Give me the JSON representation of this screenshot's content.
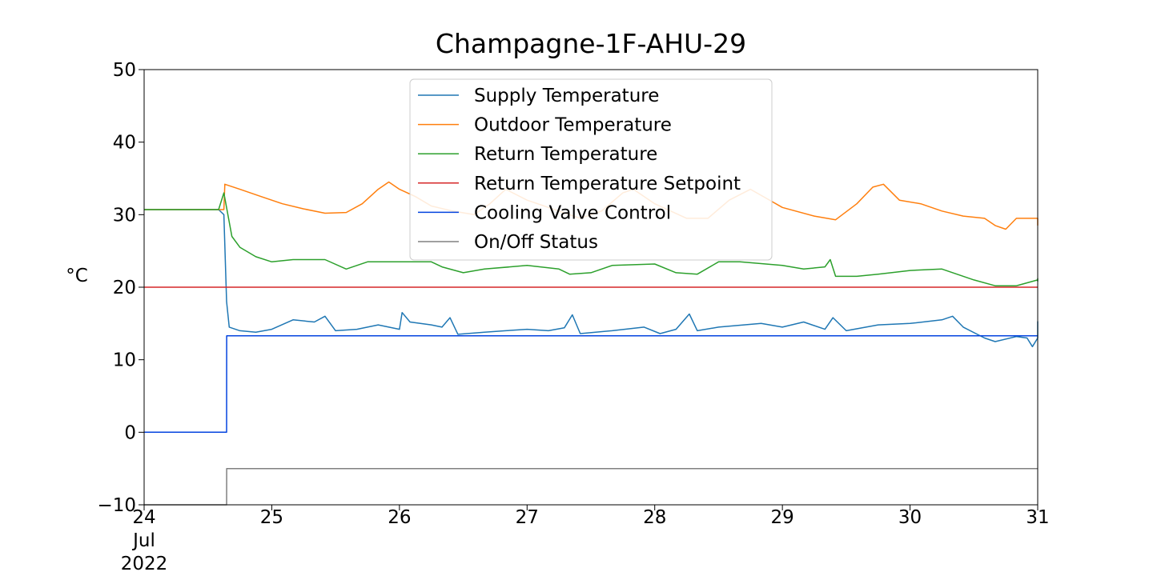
{
  "chart_data": {
    "type": "line",
    "title": "Champagne-1F-AHU-29",
    "xlabel": "",
    "ylabel": "°C",
    "ylim": [
      -10,
      50
    ],
    "xlim": [
      "2022-07-24",
      "2022-07-31"
    ],
    "xticks": [
      {
        "value": "2022-07-24",
        "lines": [
          "24",
          "Jul",
          "2022"
        ]
      },
      {
        "value": "2022-07-25",
        "lines": [
          "25"
        ]
      },
      {
        "value": "2022-07-26",
        "lines": [
          "26"
        ]
      },
      {
        "value": "2022-07-27",
        "lines": [
          "27"
        ]
      },
      {
        "value": "2022-07-28",
        "lines": [
          "28"
        ]
      },
      {
        "value": "2022-07-29",
        "lines": [
          "29"
        ]
      },
      {
        "value": "2022-07-30",
        "lines": [
          "30"
        ]
      },
      {
        "value": "2022-07-31",
        "lines": [
          "31"
        ]
      }
    ],
    "yticks": [
      {
        "value": -10,
        "label": "−10"
      },
      {
        "value": 0,
        "label": "0"
      },
      {
        "value": 10,
        "label": "10"
      },
      {
        "value": 20,
        "label": "20"
      },
      {
        "value": 30,
        "label": "30"
      },
      {
        "value": 40,
        "label": "40"
      },
      {
        "value": 50,
        "label": "50"
      }
    ],
    "grid": false,
    "legend_position": "top-center",
    "series": [
      {
        "name": "Supply Temperature",
        "color": "#1f77b4",
        "points": [
          [
            "2022-07-24 00:00",
            30.7
          ],
          [
            "2022-07-24 14:00",
            30.7
          ],
          [
            "2022-07-24 15:00",
            30.0
          ],
          [
            "2022-07-24 15:30",
            18.0
          ],
          [
            "2022-07-24 16:00",
            14.5
          ],
          [
            "2022-07-24 18:00",
            14.0
          ],
          [
            "2022-07-24 21:00",
            13.8
          ],
          [
            "2022-07-25 00:00",
            14.2
          ],
          [
            "2022-07-25 04:00",
            15.5
          ],
          [
            "2022-07-25 08:00",
            15.2
          ],
          [
            "2022-07-25 10:00",
            16.0
          ],
          [
            "2022-07-25 12:00",
            14.0
          ],
          [
            "2022-07-25 16:00",
            14.2
          ],
          [
            "2022-07-25 20:00",
            14.8
          ],
          [
            "2022-07-26 00:00",
            14.2
          ],
          [
            "2022-07-26 00:30",
            16.5
          ],
          [
            "2022-07-26 02:00",
            15.2
          ],
          [
            "2022-07-26 06:00",
            14.8
          ],
          [
            "2022-07-26 08:00",
            14.5
          ],
          [
            "2022-07-26 09:30",
            15.8
          ],
          [
            "2022-07-26 11:00",
            13.5
          ],
          [
            "2022-07-26 16:00",
            13.8
          ],
          [
            "2022-07-26 20:00",
            14.0
          ],
          [
            "2022-07-27 00:00",
            14.2
          ],
          [
            "2022-07-27 04:00",
            14.0
          ],
          [
            "2022-07-27 07:00",
            14.4
          ],
          [
            "2022-07-27 08:30",
            16.2
          ],
          [
            "2022-07-27 10:00",
            13.6
          ],
          [
            "2022-07-27 16:00",
            14.0
          ],
          [
            "2022-07-27 22:00",
            14.5
          ],
          [
            "2022-07-28 01:00",
            13.6
          ],
          [
            "2022-07-28 04:00",
            14.2
          ],
          [
            "2022-07-28 06:30",
            16.3
          ],
          [
            "2022-07-28 08:00",
            14.0
          ],
          [
            "2022-07-28 12:00",
            14.5
          ],
          [
            "2022-07-28 20:00",
            15.0
          ],
          [
            "2022-07-29 00:00",
            14.5
          ],
          [
            "2022-07-29 04:00",
            15.2
          ],
          [
            "2022-07-29 08:00",
            14.2
          ],
          [
            "2022-07-29 09:30",
            15.8
          ],
          [
            "2022-07-29 12:00",
            14.0
          ],
          [
            "2022-07-29 18:00",
            14.8
          ],
          [
            "2022-07-30 00:00",
            15.0
          ],
          [
            "2022-07-30 06:00",
            15.5
          ],
          [
            "2022-07-30 08:00",
            16.0
          ],
          [
            "2022-07-30 10:00",
            14.5
          ],
          [
            "2022-07-30 14:00",
            13.0
          ],
          [
            "2022-07-30 16:00",
            12.5
          ],
          [
            "2022-07-30 20:00",
            13.2
          ],
          [
            "2022-07-30 22:00",
            13.0
          ],
          [
            "2022-07-30 23:00",
            11.8
          ],
          [
            "2022-07-31 00:00",
            13.0
          ],
          [
            "2022-07-31 06:00",
            13.5
          ],
          [
            "2022-07-31 10:00",
            14.0
          ],
          [
            "2022-07-31 12:00",
            14.5
          ],
          [
            "2022-07-31 22:00",
            15.2
          ],
          [
            "2022-07-31 23:59",
            15.3
          ]
        ]
      },
      {
        "name": "Outdoor Temperature",
        "color": "#ff7f0e",
        "points": [
          [
            "2022-07-24 00:00",
            30.7
          ],
          [
            "2022-07-24 15:00",
            30.7
          ],
          [
            "2022-07-24 15:10",
            34.2
          ],
          [
            "2022-07-24 18:00",
            33.5
          ],
          [
            "2022-07-24 22:00",
            32.5
          ],
          [
            "2022-07-25 02:00",
            31.5
          ],
          [
            "2022-07-25 06:00",
            30.8
          ],
          [
            "2022-07-25 10:00",
            30.2
          ],
          [
            "2022-07-25 14:00",
            30.3
          ],
          [
            "2022-07-25 17:00",
            31.5
          ],
          [
            "2022-07-25 20:00",
            33.5
          ],
          [
            "2022-07-25 22:00",
            34.5
          ],
          [
            "2022-07-26 00:00",
            33.5
          ],
          [
            "2022-07-26 03:00",
            32.5
          ],
          [
            "2022-07-26 06:00",
            31.2
          ],
          [
            "2022-07-26 10:00",
            30.5
          ],
          [
            "2022-07-26 14:00",
            30.0
          ],
          [
            "2022-07-26 17:00",
            31.5
          ],
          [
            "2022-07-26 20:00",
            33.5
          ],
          [
            "2022-07-27 00:00",
            32.0
          ],
          [
            "2022-07-27 06:00",
            30.5
          ],
          [
            "2022-07-27 10:00",
            29.5
          ],
          [
            "2022-07-27 14:00",
            30.5
          ],
          [
            "2022-07-27 18:00",
            33.0
          ],
          [
            "2022-07-27 20:00",
            33.5
          ],
          [
            "2022-07-28 00:00",
            31.5
          ],
          [
            "2022-07-28 06:00",
            29.5
          ],
          [
            "2022-07-28 10:00",
            29.5
          ],
          [
            "2022-07-28 14:00",
            32.0
          ],
          [
            "2022-07-28 18:00",
            33.5
          ],
          [
            "2022-07-29 00:00",
            31.0
          ],
          [
            "2022-07-29 06:00",
            29.8
          ],
          [
            "2022-07-29 10:00",
            29.3
          ],
          [
            "2022-07-29 14:00",
            31.5
          ],
          [
            "2022-07-29 17:00",
            33.8
          ],
          [
            "2022-07-29 19:00",
            34.2
          ],
          [
            "2022-07-29 22:00",
            32.0
          ],
          [
            "2022-07-30 02:00",
            31.5
          ],
          [
            "2022-07-30 06:00",
            30.5
          ],
          [
            "2022-07-30 10:00",
            29.8
          ],
          [
            "2022-07-30 14:00",
            29.5
          ],
          [
            "2022-07-30 16:00",
            28.5
          ],
          [
            "2022-07-30 18:00",
            28.0
          ],
          [
            "2022-07-30 20:00",
            29.5
          ],
          [
            "2022-07-31 00:00",
            29.5
          ],
          [
            "2022-07-31 06:00",
            29.3
          ],
          [
            "2022-07-31 12:00",
            29.5
          ],
          [
            "2022-07-31 20:00",
            29.0
          ],
          [
            "2022-07-31 23:59",
            28.5
          ]
        ]
      },
      {
        "name": "Return Temperature",
        "color": "#2ca02c",
        "points": [
          [
            "2022-07-24 00:00",
            30.7
          ],
          [
            "2022-07-24 14:00",
            30.7
          ],
          [
            "2022-07-24 15:00",
            33.0
          ],
          [
            "2022-07-24 16:30",
            27.0
          ],
          [
            "2022-07-24 18:00",
            25.5
          ],
          [
            "2022-07-24 21:00",
            24.2
          ],
          [
            "2022-07-25 00:00",
            23.5
          ],
          [
            "2022-07-25 04:00",
            23.8
          ],
          [
            "2022-07-25 10:00",
            23.8
          ],
          [
            "2022-07-25 14:00",
            22.5
          ],
          [
            "2022-07-25 18:00",
            23.5
          ],
          [
            "2022-07-26 00:00",
            23.5
          ],
          [
            "2022-07-26 06:00",
            23.5
          ],
          [
            "2022-07-26 08:00",
            22.8
          ],
          [
            "2022-07-26 12:00",
            22.0
          ],
          [
            "2022-07-26 16:00",
            22.5
          ],
          [
            "2022-07-27 00:00",
            23.0
          ],
          [
            "2022-07-27 06:00",
            22.5
          ],
          [
            "2022-07-27 08:00",
            21.8
          ],
          [
            "2022-07-27 12:00",
            22.0
          ],
          [
            "2022-07-27 16:00",
            23.0
          ],
          [
            "2022-07-28 00:00",
            23.2
          ],
          [
            "2022-07-28 04:00",
            22.0
          ],
          [
            "2022-07-28 08:00",
            21.8
          ],
          [
            "2022-07-28 12:00",
            23.5
          ],
          [
            "2022-07-28 16:00",
            23.5
          ],
          [
            "2022-07-29 00:00",
            23.0
          ],
          [
            "2022-07-29 04:00",
            22.5
          ],
          [
            "2022-07-29 08:00",
            22.8
          ],
          [
            "2022-07-29 09:00",
            23.8
          ],
          [
            "2022-07-29 10:00",
            21.5
          ],
          [
            "2022-07-29 14:00",
            21.5
          ],
          [
            "2022-07-29 18:00",
            21.8
          ],
          [
            "2022-07-30 00:00",
            22.3
          ],
          [
            "2022-07-30 06:00",
            22.5
          ],
          [
            "2022-07-30 12:00",
            21.0
          ],
          [
            "2022-07-30 16:00",
            20.2
          ],
          [
            "2022-07-30 20:00",
            20.2
          ],
          [
            "2022-07-31 00:00",
            21.0
          ],
          [
            "2022-07-31 12:00",
            21.2
          ],
          [
            "2022-07-31 23:59",
            20.8
          ]
        ]
      },
      {
        "name": "Return Temperature Setpoint",
        "color": "#d62728",
        "points": [
          [
            "2022-07-24 00:00",
            20.0
          ],
          [
            "2022-07-31 23:59",
            20.0
          ]
        ]
      },
      {
        "name": "Cooling Valve Control",
        "color": "#0343df",
        "points": [
          [
            "2022-07-24 00:00",
            0.0
          ],
          [
            "2022-07-24 15:30",
            0.0
          ],
          [
            "2022-07-24 15:31",
            13.3
          ],
          [
            "2022-07-31 23:59",
            13.3
          ]
        ]
      },
      {
        "name": "On/Off Status",
        "color": "#808080",
        "points": [
          [
            "2022-07-24 00:00",
            -10.0
          ],
          [
            "2022-07-24 15:30",
            -10.0
          ],
          [
            "2022-07-24 15:31",
            -5.0
          ],
          [
            "2022-07-31 23:59",
            -5.0
          ]
        ]
      }
    ]
  }
}
